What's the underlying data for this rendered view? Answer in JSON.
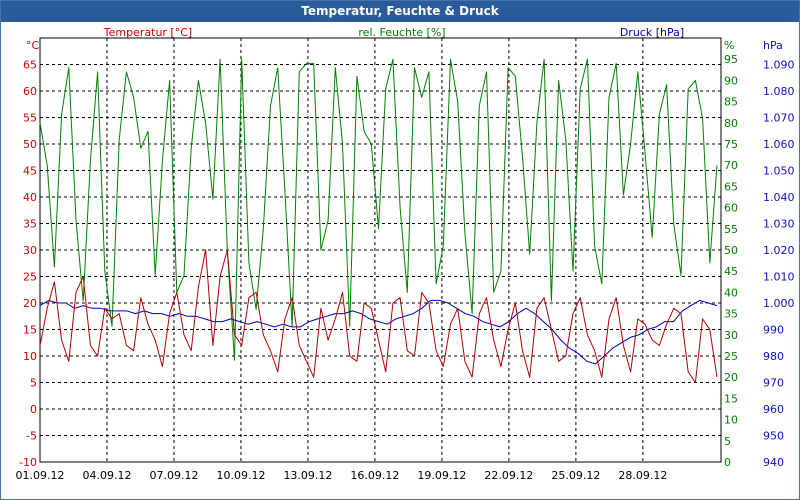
{
  "window": {
    "title": "Temperatur, Feuchte & Druck"
  },
  "chart_data": {
    "type": "line",
    "title": "Temperatur, Feuchte & Druck",
    "x": {
      "ticks": [
        "01.09.12",
        "04.09.12",
        "07.09.12",
        "10.09.12",
        "13.09.12",
        "16.09.12",
        "19.09.12",
        "22.09.12",
        "25.09.12",
        "28.09.12"
      ],
      "range_days": [
        0,
        30.5
      ]
    },
    "axes": {
      "left": {
        "unit": "°C",
        "ticks": [
          -10,
          -5,
          0,
          5,
          10,
          15,
          20,
          25,
          30,
          35,
          40,
          45,
          50,
          55,
          60,
          65
        ],
        "range": [
          -10,
          70
        ],
        "color": "#cc0000"
      },
      "right1": {
        "unit": "%",
        "ticks": [
          0,
          5,
          10,
          15,
          20,
          25,
          30,
          35,
          40,
          45,
          50,
          55,
          60,
          65,
          70,
          75,
          80,
          85,
          90,
          95
        ],
        "range": [
          0,
          100
        ],
        "color": "#008000"
      },
      "right2": {
        "unit": "hPa",
        "ticks": [
          "940",
          "950",
          "960",
          "970",
          "980",
          "990",
          "1.000",
          "1.010",
          "1.020",
          "1.030",
          "1.040",
          "1.050",
          "1.060",
          "1.070",
          "1.080",
          "1.090"
        ],
        "range": [
          940,
          1100
        ],
        "color": "#1010c0"
      }
    },
    "grid": true,
    "series": [
      {
        "name": "Temperatur [°C]",
        "axis": "left",
        "color": "#b00000",
        "y": [
          12,
          19,
          24,
          13,
          9,
          22,
          25,
          12,
          10,
          19,
          17,
          18,
          12,
          11,
          21,
          16,
          13,
          8,
          18,
          22,
          14,
          11,
          23,
          30,
          12,
          25,
          30,
          14,
          12,
          21,
          22,
          14,
          11,
          7,
          17,
          21,
          12,
          9,
          6,
          19,
          13,
          17,
          22,
          10,
          9,
          20,
          19,
          13,
          7,
          20,
          21,
          11,
          10,
          22,
          20,
          11,
          8,
          16,
          19,
          9,
          6,
          18,
          21,
          13,
          8,
          15,
          20,
          11,
          6,
          19,
          21,
          15,
          9,
          10,
          18,
          21,
          14,
          11,
          6,
          17,
          21,
          12,
          7,
          17,
          16,
          13,
          12,
          16,
          19,
          18,
          7,
          5,
          17,
          15,
          6
        ]
      },
      {
        "name": "rel. Feuchte [%]",
        "axis": "right1",
        "color": "#008000",
        "y": [
          80,
          70,
          46,
          82,
          93,
          57,
          38,
          71,
          92,
          45,
          32,
          76,
          92,
          86,
          74,
          78,
          44,
          71,
          90,
          40,
          44,
          74,
          90,
          80,
          62,
          95,
          50,
          24,
          95,
          47,
          36,
          55,
          84,
          93,
          64,
          32,
          92,
          94,
          94,
          50,
          57,
          93,
          75,
          32,
          91,
          78,
          75,
          55,
          88,
          95,
          60,
          40,
          93,
          86,
          92,
          42,
          51,
          95,
          85,
          54,
          35,
          84,
          92,
          40,
          45,
          93,
          91,
          72,
          49,
          80,
          95,
          38,
          90,
          76,
          45,
          88,
          95,
          51,
          42,
          86,
          94,
          63,
          75,
          92,
          73,
          53,
          82,
          89,
          56,
          44,
          88,
          90,
          81,
          47,
          70
        ]
      },
      {
        "name": "Druck [hPa]",
        "axis": "right2",
        "color": "#0000c0",
        "y": [
          999,
          1001,
          1000,
          1000,
          998,
          999,
          998,
          998,
          997,
          997,
          997,
          996,
          997,
          996,
          996,
          995,
          996,
          995,
          995,
          994,
          993,
          993,
          994,
          993,
          992,
          993,
          992,
          991,
          992,
          991,
          991,
          993,
          994,
          995,
          996,
          996,
          997,
          996,
          994,
          993,
          992,
          994,
          995,
          996,
          998,
          1001,
          1001,
          1000,
          998,
          996,
          995,
          993,
          992,
          991,
          993,
          996,
          998,
          996,
          993,
          990,
          986,
          983,
          981,
          978,
          977,
          980,
          983,
          985,
          987,
          988,
          990,
          991,
          993,
          993,
          997,
          999,
          1001,
          1000,
          999
        ]
      }
    ]
  }
}
